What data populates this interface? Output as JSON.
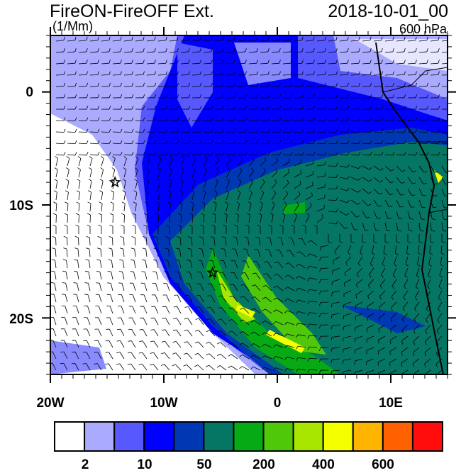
{
  "title": "FireON-FireOFF Ext.",
  "date": "2018-10-01_00",
  "units": "(1/Mm)",
  "level": "600 hPa",
  "axes": {
    "lat_labels": [
      "0",
      "10S",
      "20S"
    ],
    "lon_labels": [
      "20W",
      "10W",
      "0",
      "10E"
    ],
    "lon_range": [
      -20,
      15
    ],
    "lat_range": [
      -25,
      5
    ]
  },
  "colorbar": {
    "labels": [
      "2",
      "10",
      "50",
      "200",
      "400",
      "600"
    ],
    "colors": [
      "#ffffff",
      "#aaaaff",
      "#5858ff",
      "#0000ff",
      "#0038b4",
      "#057664",
      "#06aa14",
      "#50c80a",
      "#a8e600",
      "#f5ff00",
      "#ffb400",
      "#ff6000",
      "#ff0c0c"
    ]
  },
  "markers": [
    {
      "lon": -14.3,
      "lat": -8.0,
      "symbol": "star"
    },
    {
      "lon": -5.7,
      "lat": -16.0,
      "symbol": "star"
    }
  ]
}
